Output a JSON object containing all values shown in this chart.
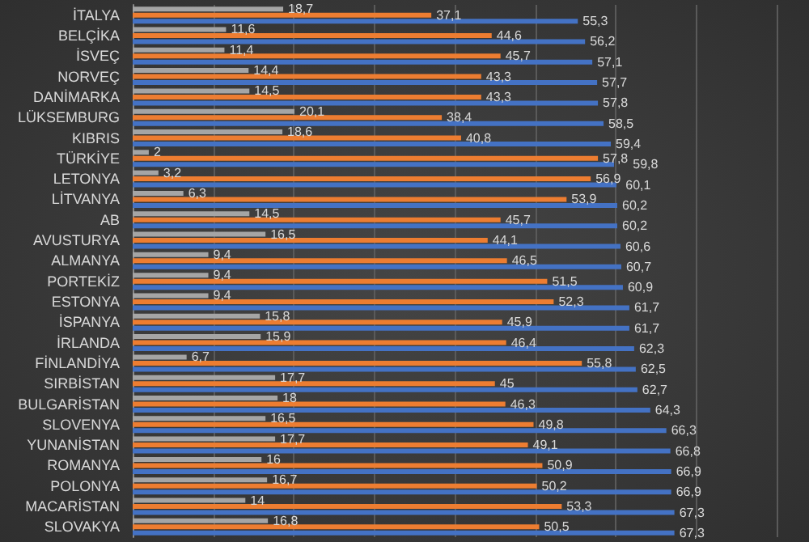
{
  "chart_data": {
    "type": "bar",
    "orientation": "horizontal",
    "categories": [
      "İTALYA",
      "BELÇİKA",
      "İSVEÇ",
      "NORVEÇ",
      "DANİMARKA",
      "LÜKSEMBURG",
      "KIBRIS",
      "TÜRKİYE",
      "LETONYA",
      "LİTVANYA",
      "AB",
      "AVUSTURYA",
      "ALMANYA",
      "PORTEKİZ",
      "ESTONYA",
      "İSPANYA",
      "İRLANDA",
      "FİNLANDİYA",
      "SIRBİSTAN",
      "BULGARİSTAN",
      "SLOVENYA",
      "YUNANİSTAN",
      "ROMANYA",
      "POLONYA",
      "MACARİSTAN",
      "SLOVAKYA"
    ],
    "series": [
      {
        "color": "#a5a5a5",
        "values": [
          18.7,
          11.6,
          11.4,
          14.4,
          14.5,
          20.1,
          18.6,
          2,
          3.2,
          6.3,
          14.5,
          16.5,
          9.4,
          9.4,
          9.4,
          15.8,
          15.9,
          6.7,
          17.7,
          18,
          16.5,
          17.7,
          16,
          16.7,
          14,
          16.8
        ],
        "value_labels": [
          "18,7",
          "11,6",
          "11,4",
          "14,4",
          "14,5",
          "20,1",
          "18,6",
          "2",
          "3,2",
          "6,3",
          "14,5",
          "16,5",
          "9,4",
          "9,4",
          "9,4",
          "15,8",
          "15,9",
          "6,7",
          "17,7",
          "18",
          "16,5",
          "17,7",
          "16",
          "16,7",
          "14",
          "16,8"
        ]
      },
      {
        "color": "#ed7d31",
        "values": [
          37.1,
          44.6,
          45.7,
          43.3,
          43.3,
          38.4,
          40.8,
          57.8,
          56.9,
          53.9,
          45.7,
          44.1,
          46.5,
          51.5,
          52.3,
          45.9,
          46.4,
          55.8,
          45,
          46.3,
          49.8,
          49.1,
          50.9,
          50.2,
          53.3,
          50.5
        ],
        "value_labels": [
          "37,1",
          "44,6",
          "45,7",
          "43,3",
          "43,3",
          "38,4",
          "40,8",
          "57,8",
          "56,9",
          "53,9",
          "45,7",
          "44,1",
          "46,5",
          "51,5",
          "52,3",
          "45,9",
          "46,4",
          "55,8",
          "45",
          "46,3",
          "49,8",
          "49,1",
          "50,9",
          "50,2",
          "53,3",
          "50,5"
        ]
      },
      {
        "color": "#4472c4",
        "values": [
          55.3,
          56.2,
          57.1,
          57.7,
          57.8,
          58.5,
          59.4,
          59.8,
          60.1,
          60.2,
          60.2,
          60.6,
          60.7,
          60.9,
          61.7,
          61.7,
          62.3,
          62.5,
          62.7,
          64.3,
          66.3,
          66.8,
          66.9,
          66.9,
          67.3,
          67.3
        ],
        "value_labels": [
          "55,3",
          "56,2",
          "57,1",
          "57,7",
          "57,8",
          "58,5",
          "59,4",
          "59,8",
          "60,1",
          "60,2",
          "60,2",
          "60,6",
          "60,7",
          "60,9",
          "61,7",
          "61,7",
          "62,3",
          "62,5",
          "62,7",
          "64,3",
          "66,3",
          "66,8",
          "66,9",
          "66,9",
          "67,3",
          "67,3"
        ]
      }
    ],
    "xlim": [
      0,
      80
    ],
    "xticks": [
      {
        "value": 0,
        "label": null
      },
      {
        "value": 10,
        "label": null
      },
      {
        "value": 20,
        "label": null
      },
      {
        "value": 30,
        "label": null
      },
      {
        "value": 40,
        "label": null
      },
      {
        "value": 50,
        "label": null
      },
      {
        "value": 60,
        "label": null
      },
      {
        "value": 70,
        "label": null
      },
      {
        "value": 80,
        "label": null
      }
    ],
    "grid": "x",
    "tick_labels": "y"
  }
}
